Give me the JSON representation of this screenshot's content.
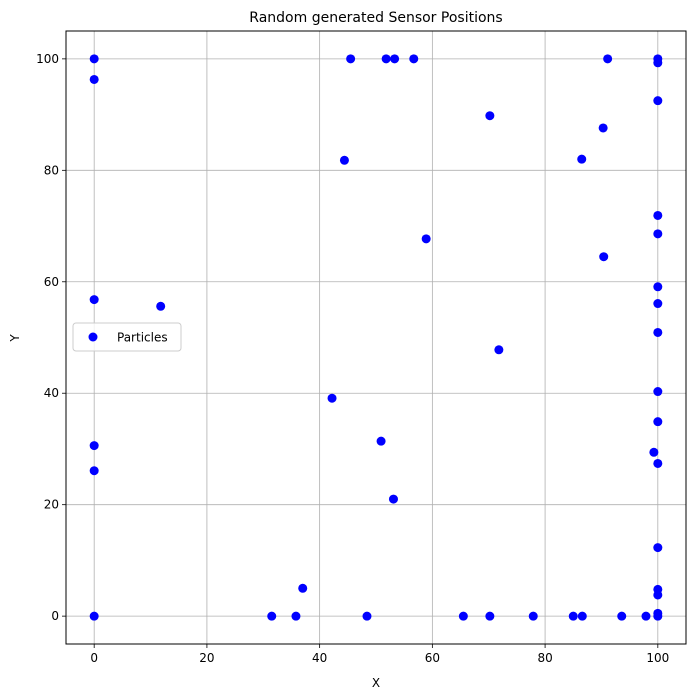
{
  "chart_data": {
    "type": "scatter",
    "title": "Random generated Sensor Positions",
    "xlabel": "X",
    "ylabel": "Y",
    "xlim": [
      -5,
      105
    ],
    "ylim": [
      -5,
      105
    ],
    "xticks": [
      0,
      20,
      40,
      60,
      80,
      100
    ],
    "yticks": [
      0,
      20,
      40,
      60,
      80,
      100
    ],
    "grid": true,
    "legend_position": "center-left",
    "series": [
      {
        "name": "Particles",
        "color": "#0000ff",
        "marker": "circle",
        "points": [
          [
            0,
            100
          ],
          [
            0,
            96.3
          ],
          [
            0,
            56.8
          ],
          [
            0,
            30.6
          ],
          [
            0,
            26.1
          ],
          [
            0,
            0
          ],
          [
            11.8,
            55.6
          ],
          [
            31.5,
            0
          ],
          [
            35.8,
            0
          ],
          [
            37,
            5
          ],
          [
            42.2,
            39.1
          ],
          [
            44.4,
            81.8
          ],
          [
            45.5,
            100
          ],
          [
            48.4,
            0
          ],
          [
            50.9,
            31.4
          ],
          [
            51.8,
            100
          ],
          [
            53.1,
            21
          ],
          [
            53.3,
            100
          ],
          [
            56.7,
            100
          ],
          [
            58.9,
            67.7
          ],
          [
            65.5,
            0
          ],
          [
            70.2,
            89.8
          ],
          [
            70.2,
            0
          ],
          [
            71.8,
            47.8
          ],
          [
            77.9,
            0
          ],
          [
            85,
            0
          ],
          [
            86.5,
            82
          ],
          [
            86.6,
            0
          ],
          [
            90.3,
            87.6
          ],
          [
            90.4,
            64.5
          ],
          [
            91.1,
            100
          ],
          [
            93.6,
            0
          ],
          [
            97.9,
            0
          ],
          [
            99.3,
            29.4
          ],
          [
            100,
            100
          ],
          [
            100,
            99.3
          ],
          [
            100,
            92.5
          ],
          [
            100,
            71.9
          ],
          [
            100,
            68.6
          ],
          [
            100,
            59.1
          ],
          [
            100,
            56.1
          ],
          [
            100,
            50.9
          ],
          [
            100,
            40.3
          ],
          [
            100,
            34.9
          ],
          [
            100,
            27.4
          ],
          [
            100,
            12.3
          ],
          [
            100,
            4.8
          ],
          [
            100,
            3.8
          ],
          [
            100,
            0.5
          ],
          [
            100,
            0
          ]
        ]
      }
    ]
  }
}
